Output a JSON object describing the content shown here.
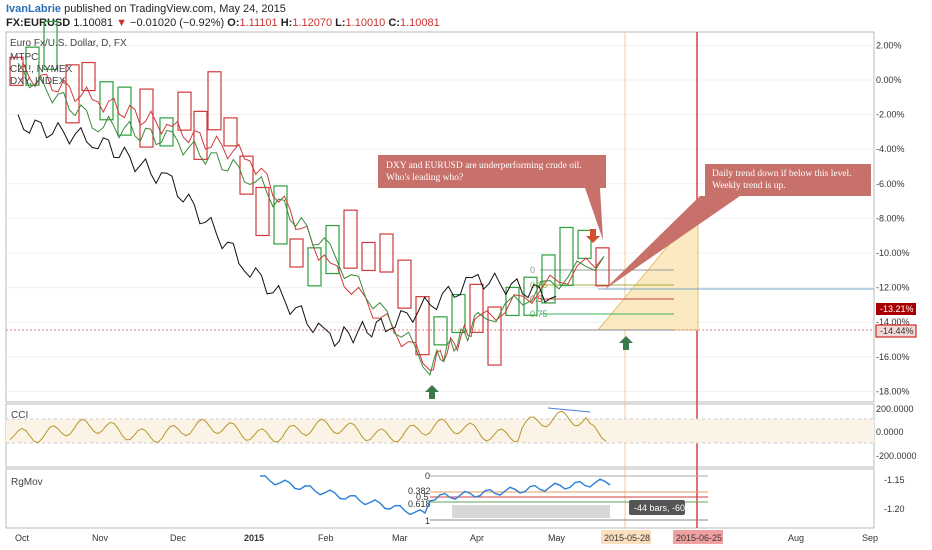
{
  "header": {
    "author": "IvanLabrie",
    "published": "published on TradingView.com, May 24, 2015",
    "symbol": "FX:EURUSD",
    "price": "1.10081",
    "change": "−0.01020 (−0.92%)",
    "o_label": "O:",
    "o": "1.11101",
    "h_label": "H:",
    "h": "1.12070",
    "l_label": "L:",
    "l": "1.10010",
    "c_label": "C:",
    "c": "1.10081"
  },
  "legend": [
    "Euro Fx/U.S. Dollar, D, FX",
    "MTPC",
    "CL1!, NYMEX",
    "DXY, INDEX"
  ],
  "colors": {
    "up": "#2e9e3e",
    "down": "#d03a3a",
    "dxy": "#111111",
    "cl": "#3a8a3a",
    "cci": "#b8962a",
    "rgmov": "#2b7fd6",
    "callout": "#c8706a"
  },
  "right_axis": [
    "2.00%",
    "0.00%",
    "-2.00%",
    "-4.00%",
    "-6.00%",
    "-8.00%",
    "-10.00%",
    "-12.00%",
    "-14.00%",
    "-16.00%",
    "-18.00%"
  ],
  "badges": {
    "a": "-13.21%",
    "b": "-14.44%"
  },
  "cci": {
    "title": "CCI",
    "ticks": [
      "200.0000",
      "0.0000",
      "-200.0000"
    ]
  },
  "rgmov": {
    "title": "RgMov",
    "ticks": [
      "-1.15",
      "-1.20"
    ],
    "fib": [
      "0",
      "0.382",
      "0.5",
      "0.618",
      "1"
    ],
    "measure": "-44 bars, -60 d"
  },
  "fibs": [
    "0",
    "0.25",
    "0.5",
    "0.75"
  ],
  "callouts": {
    "c1": [
      "DXY and EURUSD are underperforming crude oil.",
      "Who's leading who?"
    ],
    "c2": [
      "Daily trend down if below this level.",
      "Weekly trend is up."
    ]
  },
  "time_axis": [
    "Oct",
    "Nov",
    "Dec",
    "2015",
    "Feb",
    "Mar",
    "Apr",
    "May",
    "Aug",
    "Sep"
  ],
  "date_badges": [
    "2015-05-28",
    "2015-06-25"
  ],
  "chart_data": {
    "type": "line",
    "title": "Euro Fx/U.S. Dollar, D, FX",
    "y_unit": "%",
    "ylim": [
      -18,
      2
    ],
    "x": [
      "Oct",
      "Nov",
      "Dec",
      "2015",
      "Feb",
      "Mar",
      "Apr",
      "May"
    ],
    "series": [
      {
        "name": "Euro Fx/U.S. Dollar, D, FX",
        "values": [
          0.5,
          -1.2,
          -2.8,
          -4.5,
          -10.8,
          -16.5,
          -14.0,
          -10.2
        ]
      },
      {
        "name": "CL1!, NYMEX",
        "values": [
          0.5,
          -2.5,
          -3.5,
          -5.5,
          -10.0,
          -16.5,
          -14.0,
          -10.2
        ]
      },
      {
        "name": "DXY, INDEX",
        "values": [
          -2.5,
          -3.5,
          -6.0,
          -11.0,
          -15.0,
          -14.0,
          -11.5,
          -12.5
        ]
      }
    ]
  }
}
